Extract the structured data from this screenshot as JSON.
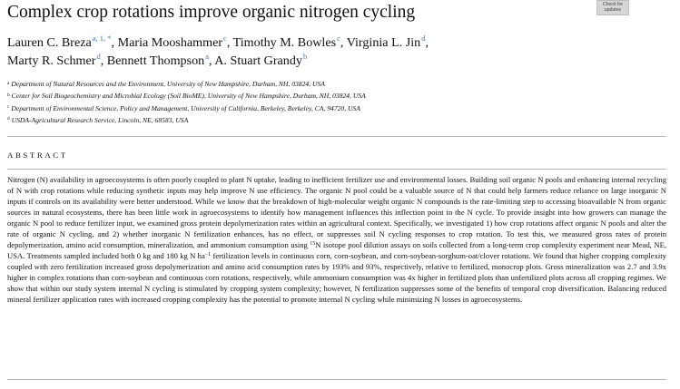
{
  "header": {
    "title": "Complex crop rotations improve organic nitrogen cycling",
    "badge": {
      "icon": "check-for-updates-icon",
      "line1": "Check for",
      "line2": "updates"
    }
  },
  "authors": [
    {
      "name": "Lauren C. Breza",
      "marks": "a, 1, *",
      "sep": ","
    },
    {
      "name": "Maria Mooshammer",
      "marks": "c",
      "sep": ","
    },
    {
      "name": "Timothy M. Bowles",
      "marks": "c",
      "sep": ","
    },
    {
      "name": "Virginia L. Jin",
      "marks": "d",
      "sep": ","
    },
    {
      "name": "Marty R. Schmer",
      "marks": "d",
      "sep": ","
    },
    {
      "name": "Bennett Thompson",
      "marks": "a",
      "sep": ","
    },
    {
      "name": "A. Stuart Grandy",
      "marks": "b",
      "sep": ""
    }
  ],
  "affiliations": [
    {
      "mark": "a",
      "text": "Department of Natural Resources and the Environment, University of New Hampshire, Durham, NH, 03824, USA"
    },
    {
      "mark": "b",
      "text": "Center for Soil Biogeochemistry and Microbial Ecology (Soil BioME), University of New Hampshire, Durham, NH, 03824, USA"
    },
    {
      "mark": "c",
      "text": "Department of Environmental Science, Policy and Management, University of California, Berkeley, Berkeley, CA, 94720, USA"
    },
    {
      "mark": "d",
      "text": "USDA-Agricultural Research Service, Lincoln, NE, 68583, USA"
    }
  ],
  "abstract": {
    "heading": "ABSTRACT",
    "text_before_isotope": "Nitrogen (N) availability in agroecosystems is often poorly coupled to plant N uptake, leading to inefficient fertilizer use and environmental losses. Building soil organic N pools and enhancing internal recycling of N with crop rotations while reducing synthetic inputs may help improve N use efficiency. The organic N pool could be a valuable source of N that could help farmers reduce reliance on large inorganic N inputs if controls on its availability were better understood. While we know that the breakdown of high-molecular weight organic N compounds is the rate-limiting step to accessing bioavailable N from organic sources in natural ecosystems, there has been little work in agroecosystems to identify how management influences this inflection point in the N cycle. To provide insight into how growers can manage the organic N pool to reduce fertilizer input, we examined gross protein depolymerization rates within an agricultural context. Specifically, we investigated 1) how crop rotations affect organic N pools and alter the rate of organic N cycling, and 2) whether inorganic N fertilization enhances, has no effect, or suppresses soil N cycling responses to crop rotation. To test this, we measured gross rates of protein depolymerization, amino acid consumption, mineralization, and ammonium consumption using ",
    "isotope_mass": "15",
    "text_before_unit": "N isotope pool dilution assays on soils collected from a long-term crop complexity experiment near Mead, NE, USA. Treatments sampled included both 0 kg and 180 kg N ha",
    "unit_exponent": "−1",
    "text_after_unit": " fertilization levels in continuous corn, corn-soybean, and corn-soybean-sorghum-oat/clover rotations. We found that higher cropping complexity coupled with zero fertilization increased gross depolymerization and amino acid consumption rates by 193% and 93%, respectively, relative to fertilized, monocrop plots. Gross mineralization was 2.7 and 3.9x higher in complex rotations than corn-soybean and continuous corn rotations, respectively, while ammonium consumption was 4x higher in fertilized plots than unfertilized plots across all cropping regimes. We show that within our study system internal N cycling is stimulated by cropping system complexity; however, N fertilization suppresses some of the benefits of temporal crop diversification. Balancing reduced mineral fertilizer application rates with increased cropping complexity has the potential to promote internal N cycling while minimizing N losses in agroecosystems."
  }
}
